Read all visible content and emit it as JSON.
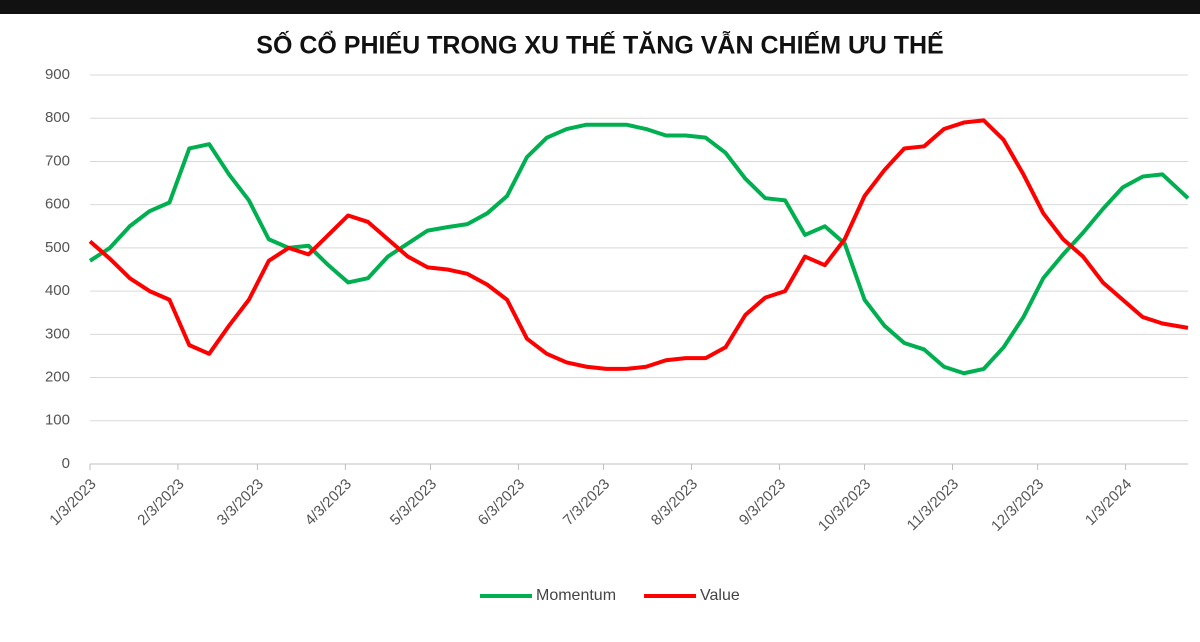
{
  "chart_data": {
    "type": "line",
    "title": "SỐ CỔ PHIẾU TRONG XU THẾ TĂNG VẪN CHIẾM ƯU THẾ",
    "x": [
      "2023-01-03",
      "2023-01-10",
      "2023-01-17",
      "2023-01-24",
      "2023-01-31",
      "2023-02-07",
      "2023-02-14",
      "2023-02-21",
      "2023-02-28",
      "2023-03-07",
      "2023-03-14",
      "2023-03-21",
      "2023-03-28",
      "2023-04-04",
      "2023-04-11",
      "2023-04-18",
      "2023-04-25",
      "2023-05-02",
      "2023-05-09",
      "2023-05-16",
      "2023-05-23",
      "2023-05-30",
      "2023-06-06",
      "2023-06-13",
      "2023-06-20",
      "2023-06-27",
      "2023-07-04",
      "2023-07-11",
      "2023-07-18",
      "2023-07-25",
      "2023-08-01",
      "2023-08-08",
      "2023-08-15",
      "2023-08-22",
      "2023-08-29",
      "2023-09-05",
      "2023-09-12",
      "2023-09-19",
      "2023-09-26",
      "2023-10-03",
      "2023-10-10",
      "2023-10-17",
      "2023-10-24",
      "2023-10-31",
      "2023-11-07",
      "2023-11-14",
      "2023-11-21",
      "2023-11-28",
      "2023-12-05",
      "2023-12-12",
      "2023-12-19",
      "2023-12-26",
      "2024-01-02",
      "2024-01-09",
      "2024-01-16",
      "2024-01-25"
    ],
    "series": [
      {
        "name": "Momentum",
        "color": "#00b050",
        "values": [
          470,
          500,
          550,
          585,
          605,
          730,
          740,
          670,
          610,
          520,
          500,
          505,
          460,
          420,
          430,
          480,
          510,
          540,
          548,
          555,
          580,
          620,
          710,
          755,
          775,
          785,
          785,
          785,
          775,
          760,
          760,
          755,
          720,
          660,
          615,
          610,
          530,
          550,
          510,
          380,
          320,
          280,
          265,
          225,
          210,
          220,
          270,
          340,
          430,
          485,
          535,
          590,
          640,
          665,
          670,
          615
        ]
      },
      {
        "name": "Value",
        "color": "#ff0000",
        "values": [
          515,
          475,
          430,
          400,
          380,
          275,
          255,
          320,
          380,
          470,
          500,
          485,
          530,
          575,
          560,
          520,
          480,
          455,
          450,
          440,
          415,
          380,
          290,
          255,
          235,
          225,
          220,
          220,
          225,
          240,
          245,
          245,
          270,
          345,
          385,
          400,
          480,
          460,
          520,
          620,
          680,
          730,
          735,
          775,
          790,
          795,
          750,
          670,
          580,
          520,
          480,
          420,
          380,
          340,
          325,
          315
        ]
      }
    ],
    "xlim": [
      "2023-01-03",
      "2024-01-25"
    ],
    "xticks": [
      {
        "value": "2023-01-03",
        "label": "1/3/2023"
      },
      {
        "value": "2023-02-03",
        "label": "2/3/2023"
      },
      {
        "value": "2023-03-03",
        "label": "3/3/2023"
      },
      {
        "value": "2023-04-03",
        "label": "4/3/2023"
      },
      {
        "value": "2023-05-03",
        "label": "5/3/2023"
      },
      {
        "value": "2023-06-03",
        "label": "6/3/2023"
      },
      {
        "value": "2023-07-03",
        "label": "7/3/2023"
      },
      {
        "value": "2023-08-03",
        "label": "8/3/2023"
      },
      {
        "value": "2023-09-03",
        "label": "9/3/2023"
      },
      {
        "value": "2023-10-03",
        "label": "10/3/2023"
      },
      {
        "value": "2023-11-03",
        "label": "11/3/2023"
      },
      {
        "value": "2023-12-03",
        "label": "12/3/2023"
      },
      {
        "value": "2024-01-03",
        "label": "1/3/2024"
      }
    ],
    "ylim": [
      0,
      900
    ],
    "yticks": [
      0,
      100,
      200,
      300,
      400,
      500,
      600,
      700,
      800,
      900
    ],
    "grid": true,
    "legend": "bottom"
  }
}
